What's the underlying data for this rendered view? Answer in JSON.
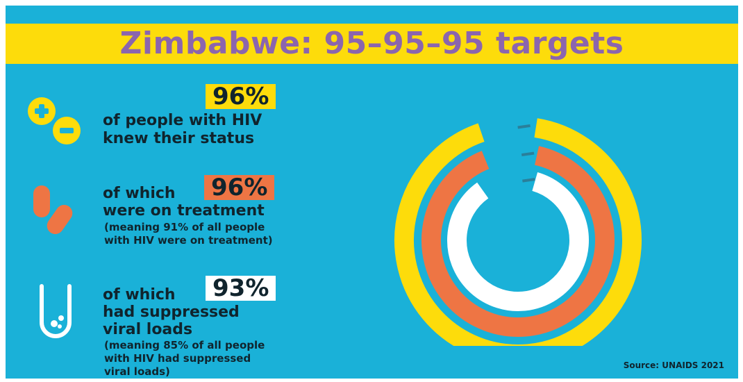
{
  "title": "Zimbabwe: 95–95–95 targets",
  "stats": [
    {
      "badge": "96%",
      "line1": "of people with HIV",
      "line2": "knew their status",
      "note1": "",
      "note2": "",
      "note3": ""
    },
    {
      "lead": "of which",
      "badge": "96%",
      "line2": "were on treatment",
      "note1": "(meaning 91% of all people",
      "note2": "with HIV were on treatment)"
    },
    {
      "lead": "of which",
      "badge": "93%",
      "line2": "had suppressed",
      "line3": "viral loads",
      "note1": "(meaning 85% of all people",
      "note2": "with HIV had suppressed",
      "note3": "viral loads)"
    }
  ],
  "source": "Source: UNAIDS 2021",
  "colors": {
    "background": "#1ab1d8",
    "title_band": "#fddc0b",
    "title_text": "#8b65ae",
    "ring1": "#fddc0b",
    "ring2": "#ee7544",
    "ring3": "#ffffff",
    "dash": "#2a7f9a"
  },
  "icons": [
    "plus-minus-icon",
    "pill-icon",
    "test-tube-icon"
  ],
  "chart_data": {
    "type": "ring",
    "values": [
      96,
      96,
      93
    ],
    "max": 100,
    "ring_colors": [
      "#fddc0b",
      "#ee7544",
      "#ffffff"
    ]
  }
}
